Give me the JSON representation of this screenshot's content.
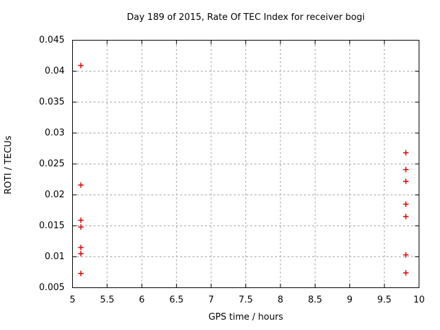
{
  "chart_data": {
    "type": "scatter",
    "title": "Day 189 of 2015, Rate Of TEC Index for receiver bogi",
    "xlabel": "GPS time / hours",
    "ylabel": "ROTI / TECUs",
    "xlim": [
      5,
      10
    ],
    "ylim": [
      0.005,
      0.045
    ],
    "xticks": [
      5,
      5.5,
      6,
      6.5,
      7,
      7.5,
      8,
      8.5,
      9,
      9.5,
      10
    ],
    "yticks": [
      0.005,
      0.01,
      0.015,
      0.02,
      0.025,
      0.03,
      0.035,
      0.04,
      0.045
    ],
    "grid": true,
    "grid_style": "dashed",
    "legend": false,
    "marker": "plus",
    "marker_color": "#e00000",
    "grid_color": "#a8a8a8",
    "axis_color": "#000000",
    "background_color": "#ffffff",
    "series": [
      {
        "name": "ROTI",
        "points": [
          {
            "x": 5.12,
            "y": 0.0409
          },
          {
            "x": 5.12,
            "y": 0.0216
          },
          {
            "x": 5.12,
            "y": 0.0159
          },
          {
            "x": 5.12,
            "y": 0.0148
          },
          {
            "x": 5.12,
            "y": 0.0115
          },
          {
            "x": 5.12,
            "y": 0.0105
          },
          {
            "x": 5.12,
            "y": 0.0073
          },
          {
            "x": 9.81,
            "y": 0.0268
          },
          {
            "x": 9.81,
            "y": 0.0241
          },
          {
            "x": 9.81,
            "y": 0.0222
          },
          {
            "x": 9.81,
            "y": 0.0185
          },
          {
            "x": 9.81,
            "y": 0.0165
          },
          {
            "x": 9.81,
            "y": 0.0103
          },
          {
            "x": 9.81,
            "y": 0.0074
          }
        ]
      }
    ]
  }
}
